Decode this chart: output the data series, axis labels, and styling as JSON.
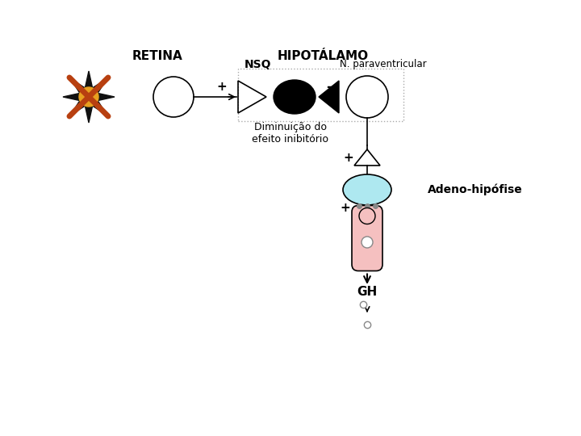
{
  "bg_color": "#ffffff",
  "title_retina": "RETINA",
  "title_hipotalamo": "HIPOTÁLAMO",
  "label_nsq": "NSQ",
  "label_n_para": "N. paraventricular",
  "label_diminuicao": "Diminuição do\nefeito inibitório",
  "label_adeno": "Adeno-hipófise",
  "label_gh": "GH",
  "ellipse_fill": "#ffffff",
  "nsq_fill": "#000000",
  "n_para_fill": "#ffffff",
  "adeno_fill": "#aee8f0",
  "capsule_fill": "#f5c0c0",
  "star_black": "#111111",
  "star_orange": "#e8a020",
  "cross_color": "#b84010",
  "dashed_color": "#aaaaaa",
  "dot_color": "#888888"
}
